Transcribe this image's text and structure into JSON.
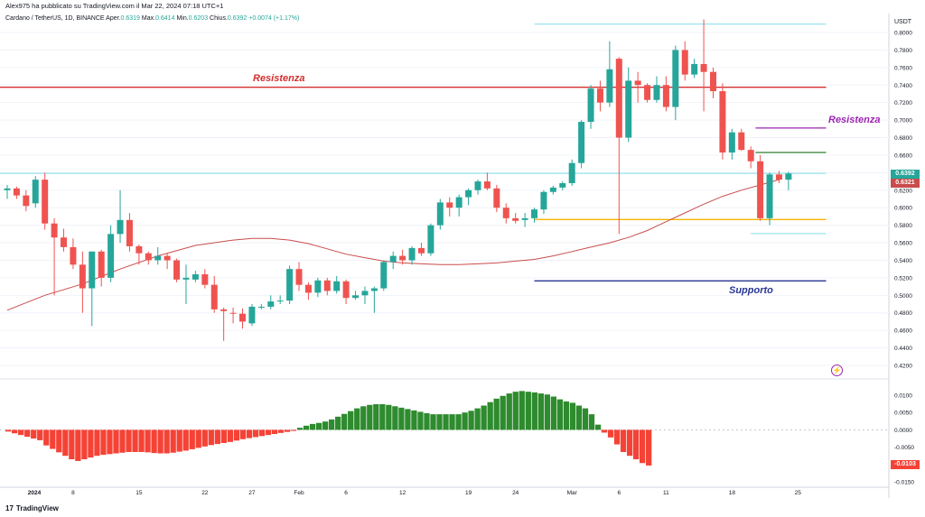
{
  "header": {
    "text": "Alex975 ha pubblicato su TradingView.com il Mar 22, 2024 07:18 UTC+1"
  },
  "legend": {
    "symbol": "Cardano / TetherUS, 1D, BINANCE",
    "open_label": "Aper.",
    "open": "0.6319",
    "high_label": "Max.",
    "high": "0.6414",
    "low_label": "Min.",
    "low": "0.6203",
    "close_label": "Chius.",
    "close": "0.6392",
    "change": "+0.0074 (+1.17%)"
  },
  "currency_label": "USDT",
  "brand": {
    "logo": "17",
    "name": "TradingView"
  },
  "annotations": {
    "resistenza_left": "Resistenza",
    "resistenza_right": "Resistenza",
    "supporto": "Supporto"
  },
  "price_labels": {
    "last": "0.6392",
    "ma": "0.6321",
    "osc": "-0.0103"
  },
  "colors": {
    "up": "#26a69a",
    "down": "#ef5350",
    "ma": "#c94c4c",
    "osc_up": "#2e8b2e",
    "osc_down": "#f44336",
    "resistenza": "#d32f2f",
    "resistenza2": "#9c27b0",
    "supporto": "#283593",
    "yellow": "#f5b400",
    "cyan": "#80deea",
    "green_level": "#2e7d32"
  },
  "icons": {
    "alert": "lightning-icon"
  },
  "chart_data": [
    {
      "type": "candlestick",
      "title": "Cardano / TetherUS, 1D, BINANCE",
      "ylabel": "USDT",
      "ylim": [
        0.41,
        0.815
      ],
      "y_ticks": [
        "0.8000",
        "0.7800",
        "0.7600",
        "0.7400",
        "0.7200",
        "0.7000",
        "0.6800",
        "0.6600",
        "0.6400",
        "0.6200",
        "0.6000",
        "0.5800",
        "0.5600",
        "0.5400",
        "0.5200",
        "0.5000",
        "0.4800",
        "0.4600",
        "0.4400",
        "0.4200"
      ],
      "x_tick_labels": [
        {
          "day": 0,
          "label": "2024"
        },
        {
          "day": 7,
          "label": "8"
        },
        {
          "day": 14,
          "label": "15"
        },
        {
          "day": 21,
          "label": "22"
        },
        {
          "day": 26,
          "label": "27"
        },
        {
          "day": 31,
          "label": "Feb"
        },
        {
          "day": 36,
          "label": "6"
        },
        {
          "day": 42,
          "label": "12"
        },
        {
          "day": 49,
          "label": "19"
        },
        {
          "day": 54,
          "label": "24"
        },
        {
          "day": 60,
          "label": "Mar"
        },
        {
          "day": 65,
          "label": "6"
        },
        {
          "day": 70,
          "label": "11"
        },
        {
          "day": 77,
          "label": "18"
        },
        {
          "day": 84,
          "label": "25"
        }
      ],
      "candles": [
        [
          0.62,
          0.626,
          0.61,
          0.622
        ],
        [
          0.622,
          0.624,
          0.61,
          0.614
        ],
        [
          0.614,
          0.62,
          0.596,
          0.602
        ],
        [
          0.605,
          0.636,
          0.6,
          0.632
        ],
        [
          0.632,
          0.64,
          0.575,
          0.582
        ],
        [
          0.582,
          0.588,
          0.5,
          0.566
        ],
        [
          0.566,
          0.576,
          0.55,
          0.555
        ],
        [
          0.555,
          0.565,
          0.53,
          0.535
        ],
        [
          0.535,
          0.55,
          0.48,
          0.508
        ],
        [
          0.508,
          0.55,
          0.465,
          0.55
        ],
        [
          0.55,
          0.552,
          0.51,
          0.52
        ],
        [
          0.52,
          0.58,
          0.515,
          0.57
        ],
        [
          0.57,
          0.62,
          0.56,
          0.586
        ],
        [
          0.586,
          0.594,
          0.55,
          0.556
        ],
        [
          0.556,
          0.558,
          0.535,
          0.548
        ],
        [
          0.548,
          0.55,
          0.535,
          0.54
        ],
        [
          0.54,
          0.555,
          0.535,
          0.545
        ],
        [
          0.545,
          0.548,
          0.53,
          0.54
        ],
        [
          0.54,
          0.542,
          0.515,
          0.518
        ],
        [
          0.518,
          0.535,
          0.49,
          0.52
        ],
        [
          0.518,
          0.528,
          0.515,
          0.524
        ],
        [
          0.524,
          0.53,
          0.508,
          0.512
        ],
        [
          0.512,
          0.522,
          0.48,
          0.484
        ],
        [
          0.484,
          0.486,
          0.448,
          0.482
        ],
        [
          0.48,
          0.486,
          0.468,
          0.479
        ],
        [
          0.479,
          0.485,
          0.462,
          0.47
        ],
        [
          0.468,
          0.49,
          0.465,
          0.487
        ],
        [
          0.487,
          0.49,
          0.484,
          0.487
        ],
        [
          0.487,
          0.5,
          0.484,
          0.493
        ],
        [
          0.493,
          0.5,
          0.49,
          0.494
        ],
        [
          0.494,
          0.534,
          0.49,
          0.53
        ],
        [
          0.53,
          0.538,
          0.505,
          0.512
        ],
        [
          0.512,
          0.515,
          0.495,
          0.503
        ],
        [
          0.503,
          0.52,
          0.498,
          0.517
        ],
        [
          0.517,
          0.52,
          0.5,
          0.505
        ],
        [
          0.505,
          0.522,
          0.502,
          0.516
        ],
        [
          0.516,
          0.518,
          0.49,
          0.497
        ],
        [
          0.497,
          0.505,
          0.495,
          0.5
        ],
        [
          0.5,
          0.51,
          0.49,
          0.505
        ],
        [
          0.505,
          0.51,
          0.48,
          0.508
        ],
        [
          0.508,
          0.54,
          0.505,
          0.538
        ],
        [
          0.538,
          0.55,
          0.53,
          0.545
        ],
        [
          0.545,
          0.552,
          0.535,
          0.54
        ],
        [
          0.54,
          0.556,
          0.535,
          0.554
        ],
        [
          0.554,
          0.56,
          0.545,
          0.548
        ],
        [
          0.548,
          0.582,
          0.545,
          0.58
        ],
        [
          0.58,
          0.61,
          0.575,
          0.606
        ],
        [
          0.606,
          0.612,
          0.59,
          0.6
        ],
        [
          0.6,
          0.615,
          0.59,
          0.612
        ],
        [
          0.612,
          0.622,
          0.603,
          0.62
        ],
        [
          0.62,
          0.632,
          0.615,
          0.63
        ],
        [
          0.63,
          0.64,
          0.62,
          0.622
        ],
        [
          0.622,
          0.626,
          0.595,
          0.6
        ],
        [
          0.6,
          0.605,
          0.582,
          0.588
        ],
        [
          0.588,
          0.594,
          0.582,
          0.585
        ],
        [
          0.586,
          0.594,
          0.578,
          0.588
        ],
        [
          0.588,
          0.6,
          0.583,
          0.598
        ],
        [
          0.598,
          0.62,
          0.593,
          0.618
        ],
        [
          0.618,
          0.625,
          0.615,
          0.623
        ],
        [
          0.623,
          0.63,
          0.62,
          0.628
        ],
        [
          0.628,
          0.655,
          0.625,
          0.651
        ],
        [
          0.651,
          0.7,
          0.645,
          0.698
        ],
        [
          0.698,
          0.74,
          0.69,
          0.736
        ],
        [
          0.736,
          0.745,
          0.71,
          0.72
        ],
        [
          0.72,
          0.79,
          0.715,
          0.758
        ],
        [
          0.77,
          0.772,
          0.57,
          0.68
        ],
        [
          0.68,
          0.76,
          0.675,
          0.745
        ],
        [
          0.745,
          0.755,
          0.72,
          0.74
        ],
        [
          0.74,
          0.742,
          0.72,
          0.723
        ],
        [
          0.723,
          0.75,
          0.72,
          0.74
        ],
        [
          0.74,
          0.75,
          0.71,
          0.715
        ],
        [
          0.715,
          0.785,
          0.7,
          0.78
        ],
        [
          0.78,
          0.79,
          0.745,
          0.752
        ],
        [
          0.752,
          0.77,
          0.748,
          0.764
        ],
        [
          0.764,
          0.815,
          0.71,
          0.755
        ],
        [
          0.755,
          0.76,
          0.725,
          0.733
        ],
        [
          0.733,
          0.742,
          0.655,
          0.663
        ],
        [
          0.663,
          0.69,
          0.655,
          0.686
        ],
        [
          0.686,
          0.69,
          0.665,
          0.666
        ],
        [
          0.666,
          0.67,
          0.645,
          0.653
        ],
        [
          0.653,
          0.66,
          0.585,
          0.588
        ],
        [
          0.588,
          0.64,
          0.58,
          0.638
        ],
        [
          0.638,
          0.642,
          0.628,
          0.632
        ],
        [
          0.632,
          0.641,
          0.62,
          0.639
        ]
      ],
      "moving_average": [
        [
          0,
          0.483
        ],
        [
          4,
          0.5
        ],
        [
          8,
          0.513
        ],
        [
          12,
          0.53
        ],
        [
          16,
          0.545
        ],
        [
          20,
          0.557
        ],
        [
          24,
          0.563
        ],
        [
          26,
          0.565
        ],
        [
          28,
          0.565
        ],
        [
          30,
          0.563
        ],
        [
          32,
          0.559
        ],
        [
          34,
          0.553
        ],
        [
          36,
          0.547
        ],
        [
          38,
          0.543
        ],
        [
          40,
          0.539
        ],
        [
          42,
          0.537
        ],
        [
          44,
          0.536
        ],
        [
          46,
          0.535
        ],
        [
          48,
          0.535
        ],
        [
          50,
          0.536
        ],
        [
          52,
          0.537
        ],
        [
          54,
          0.539
        ],
        [
          56,
          0.541
        ],
        [
          58,
          0.545
        ],
        [
          60,
          0.55
        ],
        [
          62,
          0.555
        ],
        [
          64,
          0.56
        ],
        [
          66,
          0.566
        ],
        [
          68,
          0.574
        ],
        [
          70,
          0.584
        ],
        [
          72,
          0.594
        ],
        [
          74,
          0.604
        ],
        [
          76,
          0.613
        ],
        [
          78,
          0.62
        ],
        [
          80,
          0.626
        ],
        [
          82,
          0.632
        ]
      ],
      "levels": [
        {
          "name": "Resistenza",
          "value": 0.7375,
          "from": -1,
          "to": 87
        },
        {
          "name": "Resistenza",
          "value": 0.691,
          "from": 79.5,
          "to": 87
        },
        {
          "name": "green-level",
          "value": 0.663,
          "from": 79.5,
          "to": 87
        },
        {
          "name": "yellow-level",
          "value": 0.5865,
          "from": 56,
          "to": 87
        },
        {
          "name": "Supporto",
          "value": 0.5165,
          "from": 56,
          "to": 87
        },
        {
          "name": "cyan-top",
          "value": 0.8095,
          "from": 56,
          "to": 87
        },
        {
          "name": "cyan-low",
          "value": 0.5705,
          "from": 79,
          "to": 87
        },
        {
          "name": "cyan-current",
          "value": 0.6392,
          "from": -1,
          "to": 87
        }
      ]
    },
    {
      "type": "bar",
      "ylim": [
        -0.016,
        0.0135
      ],
      "y_ticks": [
        "0.0100",
        "0.0050",
        "0.0000",
        "-0.0050",
        "-0.0150"
      ],
      "values": [
        -0.0005,
        -0.001,
        -0.0015,
        -0.002,
        -0.0025,
        -0.003,
        -0.0045,
        -0.0055,
        -0.0065,
        -0.0075,
        -0.0085,
        -0.009,
        -0.0085,
        -0.008,
        -0.0075,
        -0.0072,
        -0.007,
        -0.0068,
        -0.0066,
        -0.0064,
        -0.0064,
        -0.0064,
        -0.0065,
        -0.0067,
        -0.0068,
        -0.0068,
        -0.0066,
        -0.0063,
        -0.006,
        -0.0056,
        -0.0052,
        -0.0048,
        -0.0044,
        -0.0041,
        -0.0038,
        -0.0035,
        -0.0031,
        -0.0027,
        -0.0024,
        -0.0021,
        -0.0018,
        -0.0015,
        -0.0012,
        -0.0009,
        -0.0006,
        -0.0003,
        0.0006,
        0.0012,
        0.0017,
        0.002,
        0.0024,
        0.003,
        0.0038,
        0.0046,
        0.0054,
        0.0062,
        0.0068,
        0.0072,
        0.0074,
        0.0074,
        0.0072,
        0.0068,
        0.0064,
        0.006,
        0.0056,
        0.0052,
        0.0048,
        0.0045,
        0.0045,
        0.0045,
        0.0045,
        0.0045,
        0.005,
        0.0055,
        0.0062,
        0.007,
        0.008,
        0.009,
        0.0098,
        0.0105,
        0.011,
        0.0112,
        0.011,
        0.0108,
        0.0105,
        0.0102,
        0.0096,
        0.0088,
        0.0082,
        0.0078,
        0.007,
        0.0062,
        0.0045,
        0.0015,
        -0.0008,
        -0.0022,
        -0.0042,
        -0.0064,
        -0.0075,
        -0.0085,
        -0.0096,
        -0.0103
      ]
    }
  ]
}
